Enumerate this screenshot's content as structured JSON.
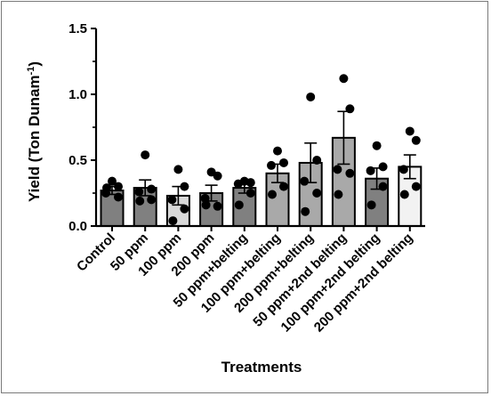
{
  "chart_data": {
    "type": "bar",
    "title": "",
    "xlabel": "Treatments",
    "ylabel": "Yield (Ton Dunam",
    "ylabel_superscript": "-1",
    "ylabel_close": ")",
    "ylim": [
      0.0,
      1.5
    ],
    "yticks": [
      0.0,
      0.5,
      1.0,
      1.5
    ],
    "ytick_labels": [
      "0.0",
      "0.5",
      "1.0",
      "1.5"
    ],
    "categories": [
      "Control",
      "50 ppm",
      "100 ppm",
      "200 ppm",
      "50 ppm+belting",
      "100 ppm+belting",
      "200 ppm+belting",
      "50 ppm+2nd belting",
      "100 ppm+2nd belting",
      "200 ppm+2nd belting"
    ],
    "values": [
      0.27,
      0.29,
      0.23,
      0.25,
      0.29,
      0.4,
      0.48,
      0.67,
      0.36,
      0.45
    ],
    "errors": [
      0.03,
      0.06,
      0.07,
      0.06,
      0.04,
      0.07,
      0.15,
      0.2,
      0.08,
      0.09
    ],
    "points": [
      [
        0.34,
        0.3,
        0.25,
        0.22,
        0.29
      ],
      [
        0.54,
        0.28,
        0.26,
        0.2,
        0.19
      ],
      [
        0.43,
        0.3,
        0.2,
        0.13,
        0.04
      ],
      [
        0.41,
        0.38,
        0.21,
        0.15,
        0.16
      ],
      [
        0.34,
        0.33,
        0.32,
        0.25,
        0.16
      ],
      [
        0.57,
        0.48,
        0.46,
        0.3,
        0.24
      ],
      [
        0.98,
        0.5,
        0.34,
        0.25,
        0.11
      ],
      [
        1.12,
        0.89,
        0.43,
        0.4,
        0.24
      ],
      [
        0.61,
        0.45,
        0.42,
        0.3,
        0.16
      ],
      [
        0.72,
        0.65,
        0.43,
        0.3,
        0.24
      ]
    ],
    "bar_fills": [
      "#808080",
      "#808080",
      "#d9d9d9",
      "#808080",
      "#808080",
      "#a9a9a9",
      "#a9a9a9",
      "#a9a9a9",
      "#808080",
      "#f2f2f2"
    ],
    "point_color": "#000000",
    "grid": false,
    "legend": "none"
  }
}
